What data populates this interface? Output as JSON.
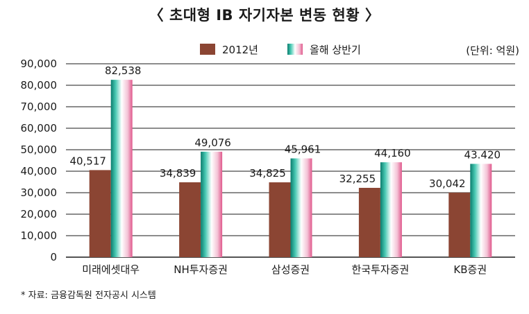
{
  "title": "〈 초대형 IB 자기자본 변동 현황 〉",
  "unit": "(단위: 억원)",
  "source": "* 자료: 금융감독원 전자공시 시스템",
  "colors": {
    "series_2012": "#8b4533",
    "series_h1_gradient": [
      "#0b7c6e",
      "#49c9b3",
      "#ffffff",
      "#f4c3d6",
      "#e0588c"
    ],
    "grid": "#1a1a1a"
  },
  "chart_data": {
    "type": "bar",
    "categories": [
      "미래에셋대우",
      "NH투자증권",
      "삼성증권",
      "한국투자증권",
      "KB증권"
    ],
    "series": [
      {
        "name": "2012년",
        "values": [
          40517,
          34839,
          34825,
          32255,
          30042
        ],
        "labels": [
          "40,517",
          "34,839",
          "34,825",
          "32,255",
          "30,042"
        ]
      },
      {
        "name": "올해 상반기",
        "values": [
          82538,
          49076,
          45961,
          44160,
          43420
        ],
        "labels": [
          "82,538",
          "49,076",
          "45,961",
          "44,160",
          "43.420"
        ]
      }
    ],
    "ylim": [
      0,
      90000
    ],
    "yticks": [
      0,
      10000,
      20000,
      30000,
      40000,
      50000,
      60000,
      70000,
      80000,
      90000
    ],
    "ytick_labels": [
      "0",
      "10,000",
      "20,000",
      "30,000",
      "40,000",
      "50,000",
      "60,000",
      "70,000",
      "80,000",
      "90,000"
    ],
    "grid": true,
    "legend_position": "top"
  }
}
